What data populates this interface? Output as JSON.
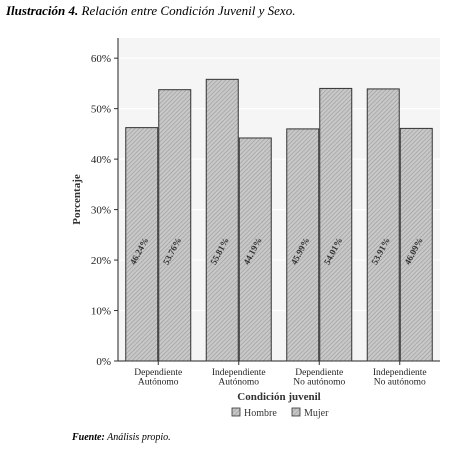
{
  "caption": {
    "lead": "Ilustración 4.",
    "text": " Relación entre Condición Juvenil y Sexo."
  },
  "source": {
    "lead": "Fuente:",
    "text": " Análisis propio."
  },
  "colors": {
    "panel": "#f5f5f5",
    "grid": "#ffffff",
    "bar_fill": "#c8c8c8",
    "bar_stroke": "#333333",
    "hatch": "#9a9a9a"
  },
  "chart_data": {
    "type": "bar",
    "title": "",
    "xlabel": "Condición juvenil",
    "ylabel": "Porcentaje",
    "ylim": [
      0,
      64
    ],
    "yticks": [
      0,
      10,
      20,
      30,
      40,
      50,
      60
    ],
    "ytick_labels": [
      "0%",
      "10%",
      "20%",
      "30%",
      "40%",
      "50%",
      "60%"
    ],
    "grid": true,
    "legend_position": "bottom",
    "categories": [
      [
        "Dependiente",
        "Autónomo"
      ],
      [
        "Independiente",
        "Autónomo"
      ],
      [
        "Dependiente",
        "No autónomo"
      ],
      [
        "Independiente",
        "No autónomo"
      ]
    ],
    "series": [
      {
        "name": "Hombre",
        "values": [
          46.24,
          55.81,
          45.99,
          53.91
        ],
        "labels": [
          "46.24%",
          "55.81%",
          "45.99%",
          "53.91%"
        ]
      },
      {
        "name": "Mujer",
        "values": [
          53.76,
          44.19,
          54.01,
          46.09
        ],
        "labels": [
          "53.76%",
          "44.19%",
          "54.01%",
          "46.09%"
        ]
      }
    ]
  }
}
